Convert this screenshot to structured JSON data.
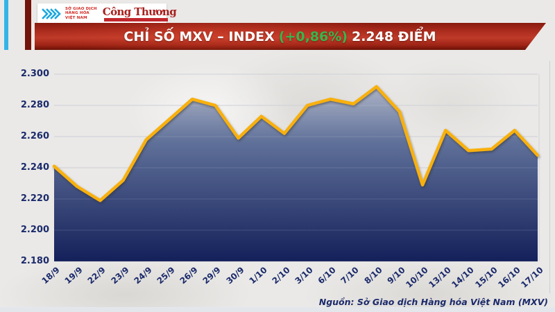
{
  "header": {
    "mxv_logo_text": [
      "SỞ GIAO DỊCH",
      "HÀNG HÓA",
      "VIỆT NAM"
    ],
    "congthuong_wordmark": "Công Thương",
    "banner": {
      "title_prefix": "CHỈ SỐ MXV – INDEX",
      "change": "(+0,86%)",
      "value_suffix": "2.248 ĐIỂM"
    }
  },
  "chart_data": {
    "type": "area",
    "title": "CHỈ SỐ MXV – INDEX (+0,86%) 2.248 ĐIỂM",
    "x_labels": [
      "18/9",
      "19/9",
      "22/9",
      "23/9",
      "24/9",
      "25/9",
      "26/9",
      "29/9",
      "30/9",
      "1/10",
      "2/10",
      "3/10",
      "6/10",
      "7/10",
      "8/10",
      "9/10",
      "10/10",
      "13/10",
      "14/10",
      "15/10",
      "16/10",
      "17/10"
    ],
    "values": [
      2241,
      2228,
      2219,
      2232,
      2258,
      2271,
      2284,
      2280,
      2259,
      2273,
      2262,
      2280,
      2284,
      2281,
      2292,
      2276,
      2229,
      2264,
      2251,
      2252,
      2264,
      2248
    ],
    "ylim": [
      2180,
      2300
    ],
    "yticks": [
      2300,
      2280,
      2260,
      2240,
      2220,
      2200,
      2180
    ],
    "ytick_labels": [
      "2.300",
      "2.280",
      "2.260",
      "2.240",
      "2.220",
      "2.200",
      "2.180"
    ],
    "grid": true,
    "legend": false,
    "colors": {
      "line": "#F8B009",
      "fill_top": "#ADB4C6",
      "fill_mid": "#5F7099",
      "fill_bottom": "#14205A",
      "axis_text": "#1B2A6B",
      "gridline": "#C6CAD2",
      "banner_change": "#3AB54A"
    }
  },
  "footer": {
    "source": "Nguồn: Sở Giao dịch Hàng hóa Việt Nam (MXV)"
  }
}
